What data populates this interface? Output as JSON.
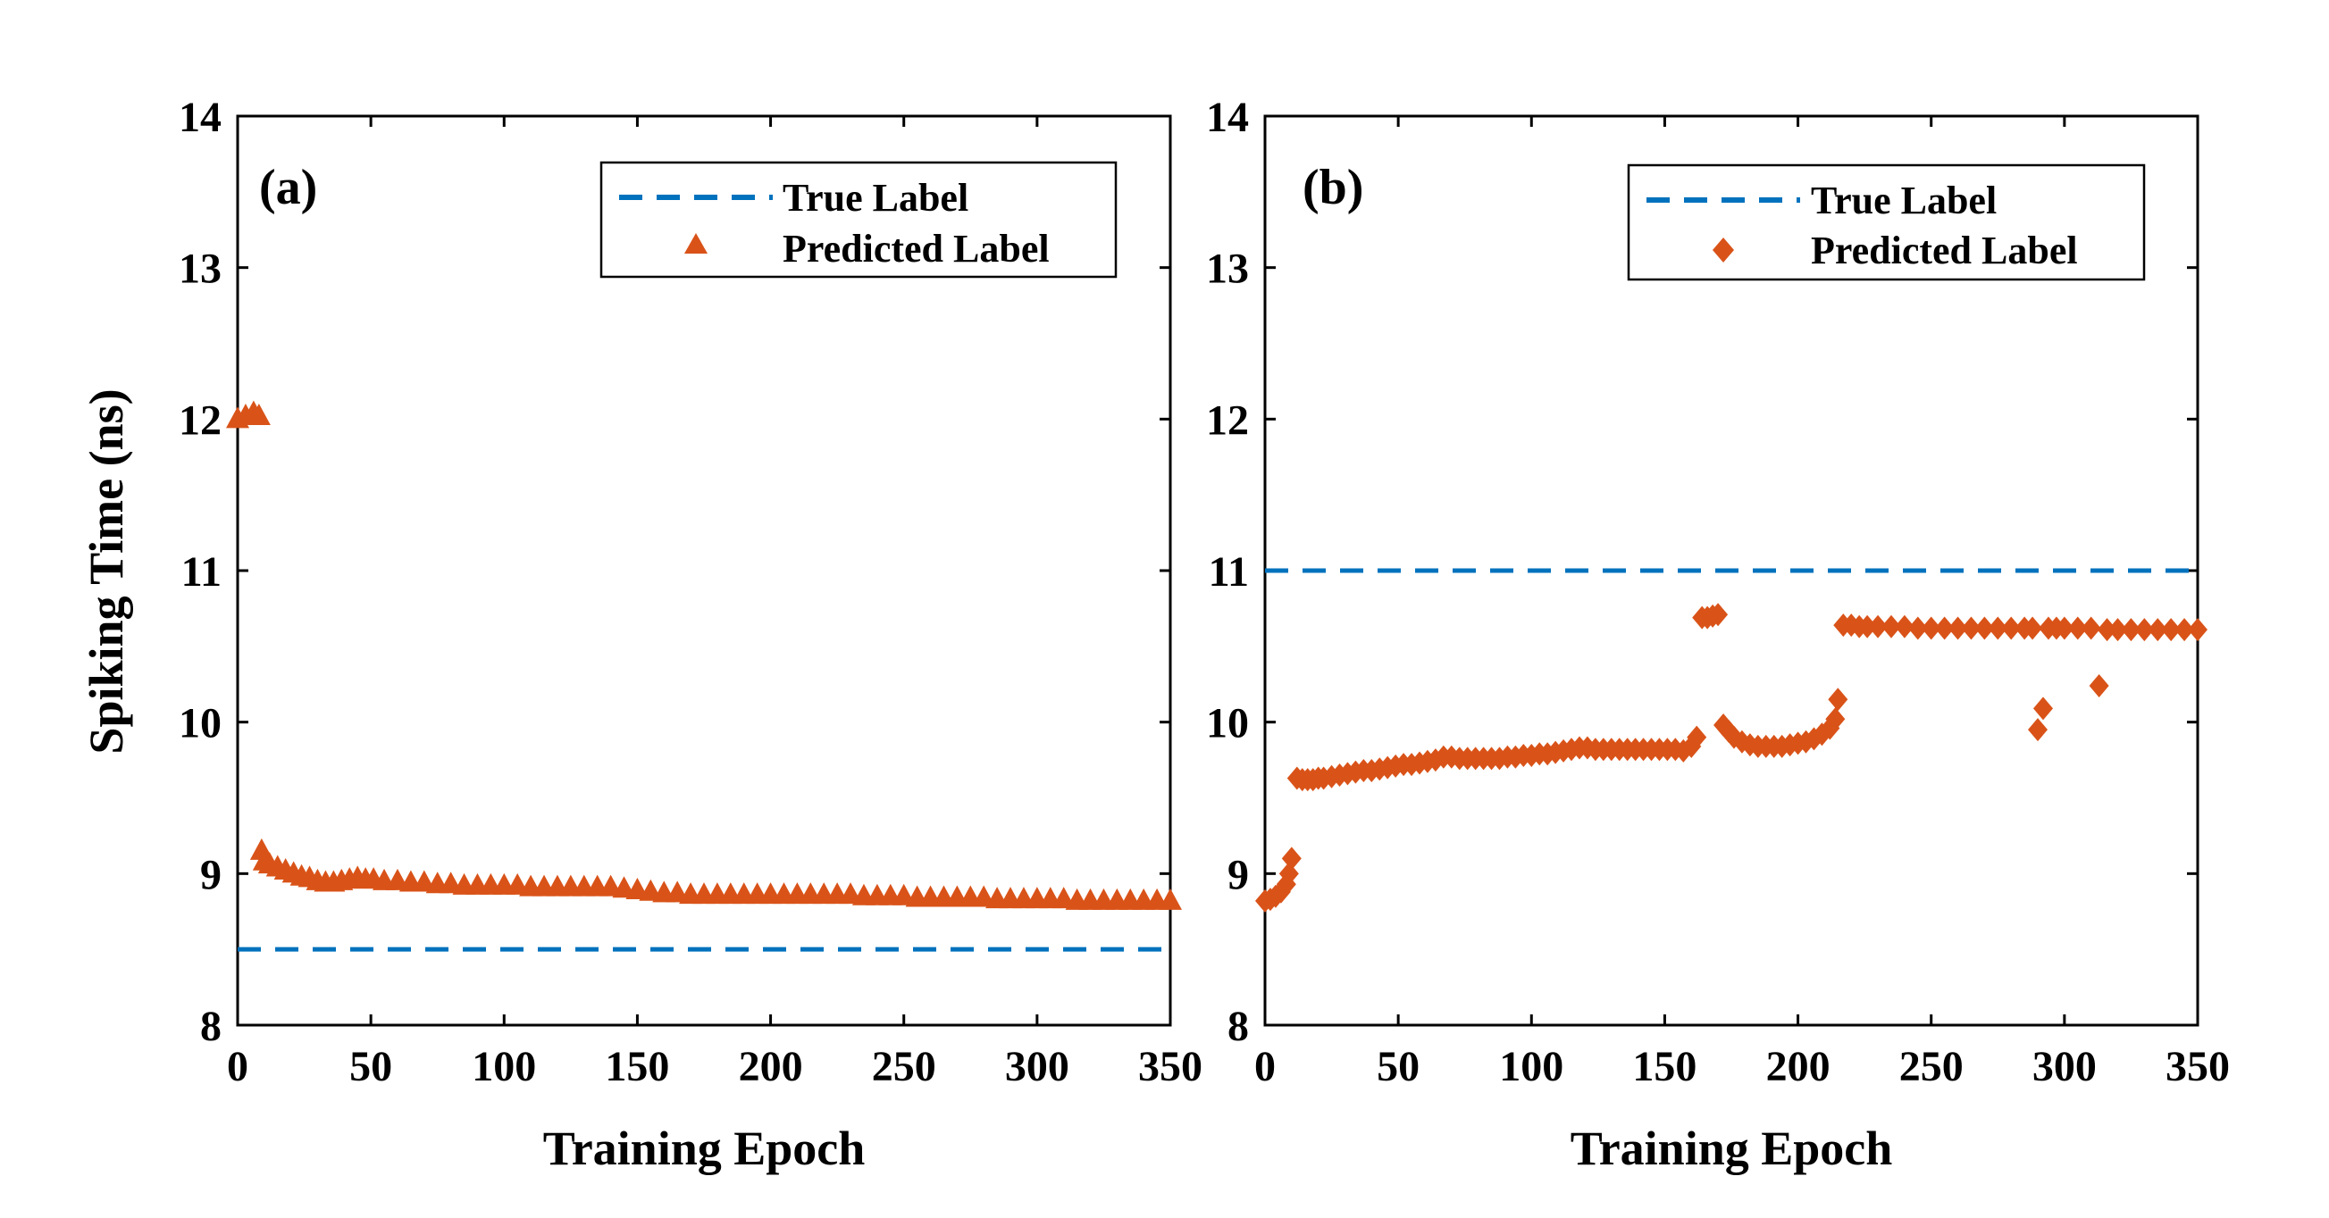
{
  "colors": {
    "true_label": "#0072BD",
    "predicted_label": "#D95319",
    "axis": "#000000",
    "background": "#FFFFFF"
  },
  "figure": {
    "ylabel": "Spiking Time (ns)"
  },
  "chart_data": [
    {
      "type": "scatter",
      "panel_label": "(a)",
      "title": "",
      "xlabel": "Training Epoch",
      "ylabel": "Spiking Time (ns)",
      "xlim": [
        0,
        350
      ],
      "ylim": [
        8,
        14
      ],
      "xticks": [
        0,
        50,
        100,
        150,
        200,
        250,
        300,
        350
      ],
      "yticks": [
        8,
        9,
        10,
        11,
        12,
        13,
        14
      ],
      "grid": false,
      "legend": {
        "position": "top-right",
        "entries": [
          "True Label",
          "Predicted Label"
        ]
      },
      "series": [
        {
          "name": "True Label",
          "kind": "dashed-line",
          "color": "#0072BD",
          "value": 8.5
        },
        {
          "name": "Predicted Label",
          "kind": "markers",
          "marker": "triangle",
          "color": "#D95319",
          "points": [
            [
              0,
              12.0
            ],
            [
              3,
              12.02
            ],
            [
              6,
              12.04
            ],
            [
              8,
              12.02
            ],
            [
              9,
              9.15
            ],
            [
              10,
              9.08
            ],
            [
              12,
              9.06
            ],
            [
              15,
              9.04
            ],
            [
              18,
              9.02
            ],
            [
              21,
              9.0
            ],
            [
              24,
              8.98
            ],
            [
              27,
              8.97
            ],
            [
              30,
              8.95
            ],
            [
              33,
              8.94
            ],
            [
              36,
              8.94
            ],
            [
              39,
              8.95
            ],
            [
              42,
              8.96
            ],
            [
              45,
              8.97
            ],
            [
              48,
              8.96
            ],
            [
              51,
              8.96
            ],
            [
              55,
              8.95
            ],
            [
              60,
              8.95
            ],
            [
              65,
              8.94
            ],
            [
              70,
              8.94
            ],
            [
              75,
              8.93
            ],
            [
              80,
              8.93
            ],
            [
              85,
              8.92
            ],
            [
              90,
              8.92
            ],
            [
              95,
              8.92
            ],
            [
              100,
              8.92
            ],
            [
              105,
              8.92
            ],
            [
              110,
              8.91
            ],
            [
              115,
              8.91
            ],
            [
              120,
              8.91
            ],
            [
              125,
              8.91
            ],
            [
              130,
              8.91
            ],
            [
              135,
              8.91
            ],
            [
              140,
              8.91
            ],
            [
              145,
              8.9
            ],
            [
              150,
              8.89
            ],
            [
              155,
              8.88
            ],
            [
              160,
              8.87
            ],
            [
              165,
              8.87
            ],
            [
              170,
              8.86
            ],
            [
              175,
              8.86
            ],
            [
              180,
              8.86
            ],
            [
              185,
              8.86
            ],
            [
              190,
              8.86
            ],
            [
              195,
              8.86
            ],
            [
              200,
              8.86
            ],
            [
              205,
              8.86
            ],
            [
              210,
              8.86
            ],
            [
              215,
              8.86
            ],
            [
              220,
              8.86
            ],
            [
              225,
              8.86
            ],
            [
              230,
              8.86
            ],
            [
              235,
              8.85
            ],
            [
              240,
              8.85
            ],
            [
              245,
              8.85
            ],
            [
              250,
              8.85
            ],
            [
              255,
              8.84
            ],
            [
              260,
              8.84
            ],
            [
              265,
              8.84
            ],
            [
              270,
              8.84
            ],
            [
              275,
              8.84
            ],
            [
              280,
              8.84
            ],
            [
              285,
              8.83
            ],
            [
              290,
              8.83
            ],
            [
              295,
              8.83
            ],
            [
              300,
              8.83
            ],
            [
              305,
              8.83
            ],
            [
              310,
              8.83
            ],
            [
              315,
              8.82
            ],
            [
              320,
              8.82
            ],
            [
              325,
              8.82
            ],
            [
              330,
              8.82
            ],
            [
              335,
              8.82
            ],
            [
              340,
              8.82
            ],
            [
              345,
              8.82
            ],
            [
              350,
              8.82
            ]
          ]
        }
      ]
    },
    {
      "type": "scatter",
      "panel_label": "(b)",
      "title": "",
      "xlabel": "Training Epoch",
      "ylabel": "",
      "xlim": [
        0,
        350
      ],
      "ylim": [
        8,
        14
      ],
      "xticks": [
        0,
        50,
        100,
        150,
        200,
        250,
        300,
        350
      ],
      "yticks": [
        8,
        9,
        10,
        11,
        12,
        13,
        14
      ],
      "grid": false,
      "legend": {
        "position": "top-right",
        "entries": [
          "True Label",
          "Predicted Label"
        ]
      },
      "series": [
        {
          "name": "True Label",
          "kind": "dashed-line",
          "color": "#0072BD",
          "value": 11.0
        },
        {
          "name": "Predicted Label",
          "kind": "markers",
          "marker": "diamond",
          "color": "#D95319",
          "points": [
            [
              0,
              8.82
            ],
            [
              2,
              8.83
            ],
            [
              4,
              8.85
            ],
            [
              6,
              8.88
            ],
            [
              8,
              8.93
            ],
            [
              9,
              9.0
            ],
            [
              10,
              9.1
            ],
            [
              12,
              9.63
            ],
            [
              14,
              9.62
            ],
            [
              16,
              9.62
            ],
            [
              18,
              9.62
            ],
            [
              20,
              9.63
            ],
            [
              22,
              9.63
            ],
            [
              25,
              9.64
            ],
            [
              28,
              9.65
            ],
            [
              31,
              9.66
            ],
            [
              34,
              9.67
            ],
            [
              37,
              9.68
            ],
            [
              40,
              9.68
            ],
            [
              43,
              9.69
            ],
            [
              46,
              9.7
            ],
            [
              49,
              9.71
            ],
            [
              52,
              9.72
            ],
            [
              55,
              9.72
            ],
            [
              58,
              9.73
            ],
            [
              61,
              9.74
            ],
            [
              64,
              9.75
            ],
            [
              67,
              9.77
            ],
            [
              70,
              9.77
            ],
            [
              73,
              9.76
            ],
            [
              76,
              9.76
            ],
            [
              79,
              9.76
            ],
            [
              82,
              9.76
            ],
            [
              85,
              9.76
            ],
            [
              88,
              9.76
            ],
            [
              91,
              9.77
            ],
            [
              94,
              9.77
            ],
            [
              97,
              9.78
            ],
            [
              100,
              9.78
            ],
            [
              103,
              9.79
            ],
            [
              106,
              9.79
            ],
            [
              109,
              9.8
            ],
            [
              112,
              9.81
            ],
            [
              115,
              9.82
            ],
            [
              118,
              9.83
            ],
            [
              121,
              9.83
            ],
            [
              124,
              9.82
            ],
            [
              127,
              9.82
            ],
            [
              130,
              9.82
            ],
            [
              133,
              9.82
            ],
            [
              136,
              9.82
            ],
            [
              139,
              9.82
            ],
            [
              142,
              9.82
            ],
            [
              145,
              9.82
            ],
            [
              148,
              9.82
            ],
            [
              151,
              9.82
            ],
            [
              154,
              9.82
            ],
            [
              157,
              9.81
            ],
            [
              160,
              9.84
            ],
            [
              162,
              9.9
            ],
            [
              164,
              10.69
            ],
            [
              166,
              10.69
            ],
            [
              168,
              10.7
            ],
            [
              170,
              10.71
            ],
            [
              172,
              9.98
            ],
            [
              174,
              9.94
            ],
            [
              176,
              9.9
            ],
            [
              179,
              9.87
            ],
            [
              182,
              9.85
            ],
            [
              185,
              9.84
            ],
            [
              188,
              9.84
            ],
            [
              191,
              9.84
            ],
            [
              194,
              9.84
            ],
            [
              197,
              9.85
            ],
            [
              200,
              9.86
            ],
            [
              203,
              9.87
            ],
            [
              206,
              9.89
            ],
            [
              209,
              9.92
            ],
            [
              212,
              9.96
            ],
            [
              214,
              10.02
            ],
            [
              215,
              10.15
            ],
            [
              217,
              10.64
            ],
            [
              220,
              10.64
            ],
            [
              223,
              10.63
            ],
            [
              226,
              10.63
            ],
            [
              230,
              10.63
            ],
            [
              235,
              10.63
            ],
            [
              240,
              10.63
            ],
            [
              245,
              10.62
            ],
            [
              250,
              10.62
            ],
            [
              255,
              10.62
            ],
            [
              260,
              10.62
            ],
            [
              265,
              10.62
            ],
            [
              270,
              10.62
            ],
            [
              275,
              10.62
            ],
            [
              280,
              10.62
            ],
            [
              285,
              10.62
            ],
            [
              288,
              10.62
            ],
            [
              290,
              9.95
            ],
            [
              292,
              10.09
            ],
            [
              294,
              10.62
            ],
            [
              297,
              10.62
            ],
            [
              300,
              10.62
            ],
            [
              305,
              10.62
            ],
            [
              310,
              10.62
            ],
            [
              313,
              10.24
            ],
            [
              316,
              10.61
            ],
            [
              320,
              10.61
            ],
            [
              325,
              10.61
            ],
            [
              330,
              10.61
            ],
            [
              335,
              10.61
            ],
            [
              340,
              10.61
            ],
            [
              345,
              10.61
            ],
            [
              350,
              10.61
            ]
          ]
        }
      ]
    }
  ]
}
